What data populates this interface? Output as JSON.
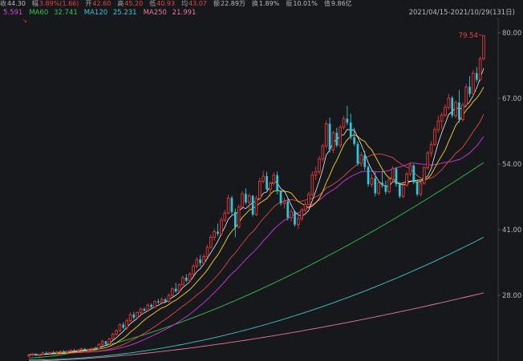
{
  "quote_bar": {
    "items": [
      {
        "label": "收",
        "value": "44.30"
      },
      {
        "label": "幅",
        "value": "3.89%(1.66)"
      },
      {
        "label": "开",
        "value": "42.60"
      },
      {
        "label": "高",
        "value": "45.20"
      },
      {
        "label": "低",
        "value": "40.93"
      },
      {
        "label": "均",
        "value": "43.07"
      },
      {
        "label": "额",
        "value": "22.89万"
      },
      {
        "label": "换",
        "value": "1.89%"
      },
      {
        "label": "振",
        "value": "10.01%"
      },
      {
        "label": "值",
        "value": "9.86亿"
      }
    ]
  },
  "ma_bar": {
    "items": [
      {
        "label": "",
        "value": "5.591",
        "color": "#d648d6"
      },
      {
        "label": "MA60",
        "value": "32.741",
        "color": "#33c14a"
      },
      {
        "label": "MA120",
        "value": "25.231",
        "color": "#3ec6c9"
      },
      {
        "label": "MA250",
        "value": "21.991",
        "color": "#e07a9a"
      }
    ],
    "date_range": "2021/04/15-2021/10/29(131日)"
  },
  "colors": {
    "up": "#e23a3a",
    "down": "#2fc7d8",
    "ma5": "#ececec",
    "ma10": "#e8c12b",
    "ma20": "#e34646",
    "ma30": "#c035c7",
    "ma60": "#33c14a",
    "ma120": "#3ec6c9",
    "ma250": "#e07a9a"
  },
  "chart_data": {
    "type": "candlestick",
    "ylim": [
      15,
      83
    ],
    "y_ticks": [
      "80.00",
      "67.00",
      "54.00",
      "41.00",
      "28.00"
    ],
    "y_tick_values": [
      80,
      67,
      54,
      41,
      28
    ],
    "max_marker": "79.54",
    "max_value": 79.54,
    "candles": [
      [
        16.0,
        16.4,
        15.8,
        16.2
      ],
      [
        16.2,
        16.6,
        16.0,
        16.4
      ],
      [
        16.4,
        16.5,
        16.0,
        16.1
      ],
      [
        16.1,
        16.4,
        15.9,
        16.3
      ],
      [
        16.3,
        16.8,
        16.1,
        16.6
      ],
      [
        16.6,
        16.9,
        16.3,
        16.5
      ],
      [
        16.5,
        16.8,
        16.3,
        16.7
      ],
      [
        16.7,
        17.0,
        16.5,
        16.6
      ],
      [
        16.6,
        16.9,
        16.4,
        16.8
      ],
      [
        16.8,
        17.1,
        16.6,
        16.9
      ],
      [
        16.9,
        17.2,
        16.6,
        16.7
      ],
      [
        16.7,
        17.1,
        16.5,
        17.0
      ],
      [
        17.0,
        17.3,
        16.8,
        17.1
      ],
      [
        17.1,
        17.4,
        16.9,
        17.0
      ],
      [
        17.0,
        17.3,
        16.8,
        17.2
      ],
      [
        17.2,
        17.6,
        17.0,
        17.4
      ],
      [
        17.4,
        17.6,
        17.1,
        17.2
      ],
      [
        17.2,
        17.5,
        17.0,
        17.3
      ],
      [
        17.3,
        17.6,
        17.1,
        17.5
      ],
      [
        17.5,
        17.8,
        17.3,
        17.4
      ],
      [
        17.4,
        18.5,
        17.2,
        18.3
      ],
      [
        18.3,
        19.2,
        18.0,
        18.9
      ],
      [
        18.9,
        19.0,
        18.2,
        18.4
      ],
      [
        18.4,
        19.6,
        18.2,
        19.4
      ],
      [
        19.4,
        20.6,
        19.2,
        20.3
      ],
      [
        20.3,
        21.3,
        20.0,
        21.0
      ],
      [
        21.0,
        22.5,
        20.7,
        22.2
      ],
      [
        22.2,
        22.7,
        21.3,
        21.6
      ],
      [
        21.6,
        23.4,
        21.2,
        23.0
      ],
      [
        23.0,
        24.6,
        22.7,
        24.2
      ],
      [
        24.2,
        24.8,
        23.2,
        23.6
      ],
      [
        23.6,
        24.9,
        23.3,
        24.6
      ],
      [
        24.6,
        25.6,
        24.3,
        25.3
      ],
      [
        25.3,
        25.6,
        24.8,
        25.0
      ],
      [
        25.0,
        26.4,
        24.8,
        26.1
      ],
      [
        26.1,
        26.4,
        25.5,
        25.7
      ],
      [
        25.7,
        27.0,
        25.4,
        26.8
      ],
      [
        26.8,
        27.3,
        26.3,
        26.6
      ],
      [
        26.6,
        27.6,
        26.2,
        27.2
      ],
      [
        27.2,
        27.5,
        26.6,
        26.8
      ],
      [
        26.8,
        28.4,
        26.5,
        28.0
      ],
      [
        28.0,
        29.6,
        27.7,
        29.3
      ],
      [
        29.3,
        30.5,
        28.5,
        28.8
      ],
      [
        28.8,
        30.4,
        28.5,
        30.1
      ],
      [
        30.1,
        31.9,
        29.8,
        31.5
      ],
      [
        31.5,
        32.2,
        30.6,
        30.9
      ],
      [
        30.9,
        32.6,
        30.6,
        32.2
      ],
      [
        32.2,
        34.2,
        31.9,
        33.8
      ],
      [
        33.8,
        35.6,
        33.4,
        35.1
      ],
      [
        35.1,
        36.0,
        33.8,
        34.4
      ],
      [
        34.4,
        36.2,
        34.0,
        35.7
      ],
      [
        35.7,
        38.0,
        35.4,
        37.5
      ],
      [
        37.5,
        40.0,
        37.2,
        39.5
      ],
      [
        39.5,
        41.2,
        38.8,
        40.6
      ],
      [
        40.6,
        42.2,
        39.7,
        40.2
      ],
      [
        40.2,
        43.5,
        39.8,
        42.9
      ],
      [
        42.9,
        44.9,
        42.5,
        44.3
      ],
      [
        44.3,
        47.9,
        44.0,
        47.3
      ],
      [
        47.3,
        47.7,
        44.0,
        44.5
      ],
      [
        44.5,
        45.2,
        39.5,
        41.5
      ],
      [
        41.5,
        46.0,
        41.2,
        45.5
      ],
      [
        45.5,
        48.6,
        45.0,
        48.1
      ],
      [
        48.1,
        49.2,
        46.0,
        46.4
      ],
      [
        46.4,
        48.2,
        44.7,
        47.7
      ],
      [
        47.7,
        47.9,
        43.6,
        44.0
      ],
      [
        44.0,
        47.8,
        43.7,
        47.2
      ],
      [
        47.2,
        51.3,
        46.8,
        50.6
      ],
      [
        50.6,
        52.7,
        50.2,
        51.6
      ],
      [
        51.6,
        52.5,
        48.8,
        49.0
      ],
      [
        49.0,
        50.6,
        47.5,
        50.2
      ],
      [
        50.2,
        52.4,
        49.8,
        51.8
      ],
      [
        51.8,
        52.5,
        48.0,
        48.6
      ],
      [
        48.6,
        48.8,
        45.8,
        46.2
      ],
      [
        46.2,
        47.3,
        45.2,
        46.6
      ],
      [
        46.6,
        47.1,
        42.8,
        43.4
      ],
      [
        43.4,
        45.2,
        42.6,
        44.6
      ],
      [
        44.6,
        44.8,
        41.6,
        42.0
      ],
      [
        42.0,
        43.9,
        41.1,
        43.2
      ],
      [
        43.2,
        45.3,
        42.7,
        44.9
      ],
      [
        44.9,
        46.6,
        44.5,
        46.0
      ],
      [
        46.0,
        48.5,
        45.7,
        48.0
      ],
      [
        48.0,
        52.5,
        47.5,
        51.8
      ],
      [
        51.8,
        53.5,
        50.9,
        52.5
      ],
      [
        52.5,
        55.6,
        52.0,
        55.0
      ],
      [
        55.0,
        58.0,
        54.4,
        57.6
      ],
      [
        57.6,
        62.6,
        57.1,
        62.0
      ],
      [
        62.0,
        63.2,
        56.3,
        56.8
      ],
      [
        56.8,
        60.6,
        56.2,
        60.2
      ],
      [
        60.2,
        61.2,
        57.3,
        57.7
      ],
      [
        57.7,
        61.8,
        57.2,
        61.3
      ],
      [
        61.3,
        63.6,
        60.8,
        63.0
      ],
      [
        63.0,
        65.5,
        61.7,
        62.2
      ],
      [
        62.2,
        64.0,
        58.8,
        59.3
      ],
      [
        59.3,
        61.2,
        57.6,
        58.0
      ],
      [
        58.0,
        58.5,
        53.6,
        54.1
      ],
      [
        54.1,
        56.4,
        53.5,
        55.8
      ],
      [
        55.8,
        56.6,
        52.8,
        53.4
      ],
      [
        53.4,
        53.8,
        49.5,
        50.0
      ],
      [
        50.0,
        52.0,
        49.4,
        51.2
      ],
      [
        51.2,
        52.4,
        47.6,
        48.2
      ],
      [
        48.2,
        50.8,
        47.8,
        50.3
      ],
      [
        50.3,
        52.6,
        49.3,
        49.8
      ],
      [
        49.8,
        50.7,
        48.0,
        48.5
      ],
      [
        48.5,
        51.5,
        48.2,
        51.0
      ],
      [
        51.0,
        53.6,
        50.5,
        53.1
      ],
      [
        53.1,
        53.4,
        49.5,
        50.0
      ],
      [
        50.0,
        50.5,
        47.2,
        47.6
      ],
      [
        47.6,
        50.2,
        47.3,
        49.8
      ],
      [
        49.8,
        52.5,
        49.5,
        52.0
      ],
      [
        52.0,
        54.4,
        51.6,
        53.7
      ],
      [
        53.7,
        54.0,
        50.0,
        50.4
      ],
      [
        50.4,
        51.0,
        47.6,
        48.0
      ],
      [
        48.0,
        50.5,
        47.6,
        50.2
      ],
      [
        50.2,
        53.6,
        49.9,
        53.3
      ],
      [
        53.3,
        56.6,
        52.9,
        56.2
      ],
      [
        56.2,
        58.5,
        55.4,
        57.9
      ],
      [
        57.9,
        61.3,
        57.6,
        60.8
      ],
      [
        60.8,
        63.6,
        60.2,
        62.5
      ],
      [
        62.5,
        64.2,
        60.9,
        63.7
      ],
      [
        63.7,
        65.8,
        63.3,
        65.2
      ],
      [
        65.2,
        67.9,
        64.8,
        67.1
      ],
      [
        67.1,
        67.5,
        63.2,
        63.6
      ],
      [
        63.6,
        66.6,
        63.1,
        66.2
      ],
      [
        66.2,
        68.7,
        62.2,
        62.8
      ],
      [
        62.8,
        66.2,
        62.4,
        65.7
      ],
      [
        65.7,
        69.9,
        65.3,
        69.3
      ],
      [
        69.3,
        71.4,
        67.3,
        67.9
      ],
      [
        67.9,
        72.6,
        67.5,
        72.0
      ],
      [
        72.0,
        73.2,
        70.2,
        70.7
      ],
      [
        70.7,
        75.3,
        70.3,
        74.9
      ],
      [
        74.9,
        79.54,
        74.5,
        79.4
      ]
    ]
  }
}
